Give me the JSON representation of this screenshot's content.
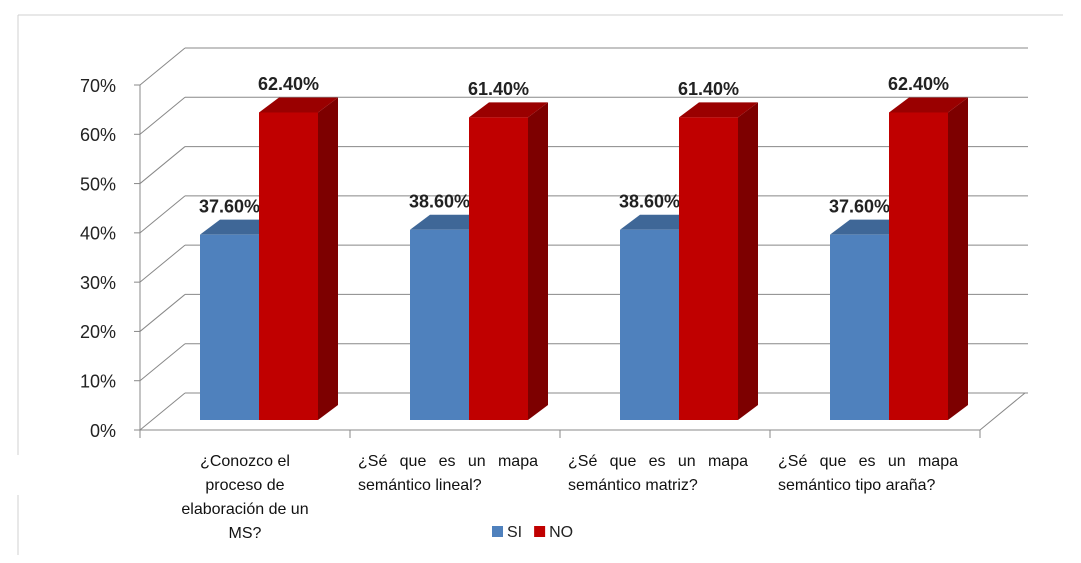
{
  "chart_data": {
    "type": "bar3d",
    "categories": [
      "¿Conozco el proceso de elaboración de un MS?",
      "¿Sé que es un mapa semántico lineal?",
      "¿Sé que es un mapa semántico matriz?",
      "¿Sé que es un mapa semántico tipo araña?"
    ],
    "series": [
      {
        "name": "SI",
        "color": "#4f81bd",
        "values": [
          37.6,
          38.6,
          38.6,
          37.6
        ],
        "value_labels": [
          "37.60%",
          "38.60%",
          "38.60%",
          "37.60%"
        ]
      },
      {
        "name": "NO",
        "color": "#c00000",
        "values": [
          62.4,
          61.4,
          61.4,
          62.4
        ],
        "value_labels": [
          "62.40%",
          "61.40%",
          "61.40%",
          "62.40%"
        ]
      }
    ],
    "ylim": [
      0,
      70
    ],
    "yticks": [
      {
        "value": 0,
        "label": "0%"
      },
      {
        "value": 10,
        "label": "10%"
      },
      {
        "value": 20,
        "label": "20%"
      },
      {
        "value": 30,
        "label": "30%"
      },
      {
        "value": 40,
        "label": "40%"
      },
      {
        "value": 50,
        "label": "50%"
      },
      {
        "value": 60,
        "label": "60%"
      },
      {
        "value": 70,
        "label": "70%"
      }
    ],
    "grid": true,
    "legend": "bottom"
  }
}
